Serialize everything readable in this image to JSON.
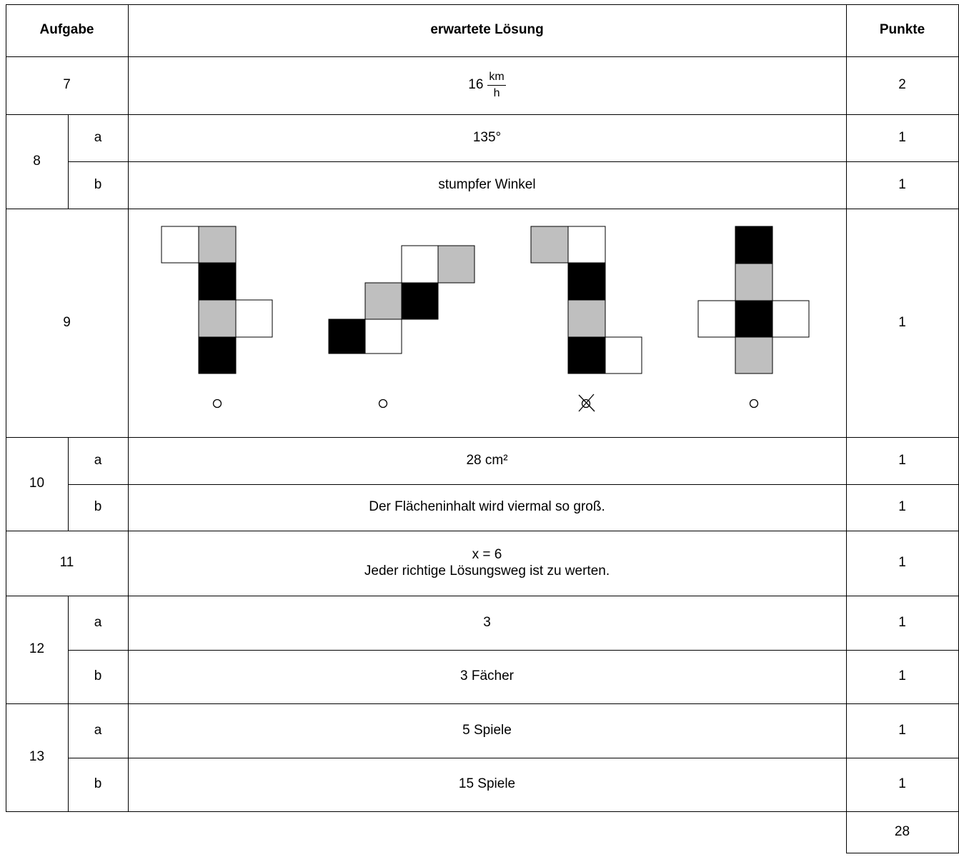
{
  "header": {
    "task": "Aufgabe",
    "solution": "erwartete Lösung",
    "points": "Punkte"
  },
  "rows": [
    {
      "task": "7",
      "solution_value": "16",
      "solution_unit_num": "km",
      "solution_unit_den": "h",
      "points": "2"
    },
    {
      "task": "8",
      "sub": [
        {
          "part": "a",
          "solution": "135°",
          "points": "1"
        },
        {
          "part": "b",
          "solution": "stumpfer Winkel",
          "points": "1"
        }
      ]
    },
    {
      "task": "9",
      "points": "1",
      "nets": [
        {
          "marker": "empty"
        },
        {
          "marker": "empty"
        },
        {
          "marker": "crossed"
        },
        {
          "marker": "empty"
        }
      ]
    },
    {
      "task": "10",
      "sub": [
        {
          "part": "a",
          "solution": "28 cm²",
          "points": "1"
        },
        {
          "part": "b",
          "solution": "Der Flächeninhalt wird viermal so groß.",
          "points": "1"
        }
      ]
    },
    {
      "task": "11",
      "solution_line1": "x = 6",
      "solution_line2": "Jeder richtige Lösungsweg ist zu werten.",
      "points": "1"
    },
    {
      "task": "12",
      "sub": [
        {
          "part": "a",
          "solution": "3",
          "points": "1"
        },
        {
          "part": "b",
          "solution": "3 Fächer",
          "points": "1"
        }
      ]
    },
    {
      "task": "13",
      "sub": [
        {
          "part": "a",
          "solution": "5 Spiele",
          "points": "1"
        },
        {
          "part": "b",
          "solution": "15 Spiele",
          "points": "1"
        }
      ]
    }
  ],
  "total": "28",
  "colors": {
    "black_square": "#000000",
    "gray_square": "#bfbfbf",
    "white_square": "#ffffff"
  }
}
